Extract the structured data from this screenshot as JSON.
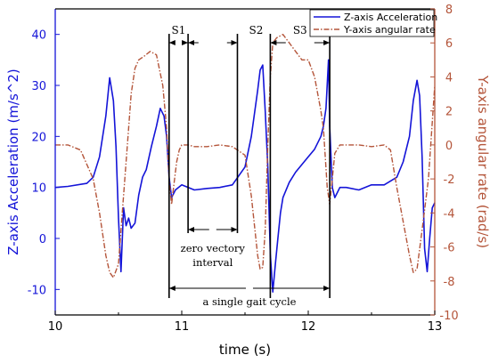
{
  "chart_data": {
    "type": "line",
    "title": "",
    "xlabel": "time (s)",
    "ylabel_left": "Z-axis Acceleration (m/s^2)",
    "ylabel_right": "Y-axis angular rate (rad/s)",
    "xlim": [
      10,
      13
    ],
    "ylim_left": [
      -15,
      45
    ],
    "ylim_right": [
      -10,
      8
    ],
    "x_ticks": [
      "10",
      "11",
      "12",
      "13"
    ],
    "y_ticks_left": [
      "-10",
      "0",
      "10",
      "20",
      "30",
      "40"
    ],
    "y_ticks_right": [
      "-10",
      "-8",
      "-6",
      "-4",
      "-2",
      "0",
      "2",
      "4",
      "6",
      "8"
    ],
    "grid": false,
    "legend_position": "top-right",
    "series": [
      {
        "name": "Z-axis Acceleration",
        "axis": "left",
        "color": "#1414d8",
        "style": "solid",
        "x": [
          10.0,
          10.1,
          10.25,
          10.3,
          10.35,
          10.4,
          10.43,
          10.46,
          10.48,
          10.5,
          10.52,
          10.54,
          10.56,
          10.58,
          10.6,
          10.63,
          10.66,
          10.69,
          10.72,
          10.76,
          10.8,
          10.83,
          10.86,
          10.88,
          10.9,
          10.92,
          10.95,
          11.0,
          11.1,
          11.2,
          11.3,
          11.4,
          11.5,
          11.55,
          11.6,
          11.62,
          11.64,
          11.66,
          11.68,
          11.7,
          11.72,
          11.74,
          11.76,
          11.78,
          11.8,
          11.85,
          11.9,
          11.95,
          12.0,
          12.05,
          12.1,
          12.12,
          12.14,
          12.16,
          12.17,
          12.19,
          12.21,
          12.25,
          12.3,
          12.4,
          12.5,
          12.6,
          12.7,
          12.75,
          12.8,
          12.83,
          12.86,
          12.88,
          12.9,
          12.92,
          12.94,
          12.96,
          12.98,
          13.0
        ],
        "y": [
          10,
          10.2,
          10.8,
          12,
          16,
          24,
          31.5,
          27,
          18,
          4,
          -6.5,
          6,
          2.5,
          4,
          2,
          3,
          8.5,
          12,
          13.5,
          18,
          22,
          25.5,
          24,
          20,
          12,
          8,
          9.5,
          10.5,
          9.5,
          9.8,
          10,
          10.5,
          14,
          20,
          29,
          33,
          34,
          25,
          14,
          -3,
          -10.5,
          -5,
          0,
          5,
          8,
          11,
          13,
          14.5,
          16,
          17.5,
          20,
          22,
          25.5,
          35,
          22,
          10,
          8,
          10,
          10,
          9.5,
          10.5,
          10.5,
          12,
          15,
          20,
          27,
          31,
          28,
          16,
          -2,
          -6.5,
          0,
          6,
          7
        ]
      },
      {
        "name": "Y-axis angular rate",
        "axis": "right",
        "color": "#b4553a",
        "style": "dash-dot",
        "x": [
          10.0,
          10.1,
          10.2,
          10.3,
          10.35,
          10.4,
          10.43,
          10.46,
          10.5,
          10.52,
          10.55,
          10.58,
          10.6,
          10.63,
          10.66,
          10.7,
          10.75,
          10.8,
          10.85,
          10.88,
          10.9,
          10.92,
          10.94,
          10.96,
          10.98,
          11.0,
          11.05,
          11.1,
          11.2,
          11.3,
          11.4,
          11.5,
          11.55,
          11.6,
          11.62,
          11.64,
          11.66,
          11.68,
          11.7,
          11.72,
          11.75,
          11.8,
          11.85,
          11.9,
          11.95,
          12.0,
          12.05,
          12.1,
          12.12,
          12.15,
          12.17,
          12.19,
          12.21,
          12.25,
          12.3,
          12.4,
          12.5,
          12.6,
          12.65,
          12.7,
          12.75,
          12.8,
          12.83,
          12.86,
          12.9,
          12.95,
          13.0
        ],
        "y": [
          0,
          0,
          -0.3,
          -2,
          -4,
          -6.5,
          -7.5,
          -7.8,
          -7,
          -5,
          -2,
          1,
          3,
          4.5,
          5,
          5.2,
          5.5,
          5.3,
          3.5,
          1,
          -2,
          -3.5,
          -2.2,
          -1,
          -0.3,
          0,
          0,
          -0.1,
          -0.1,
          0,
          -0.1,
          -0.6,
          -3,
          -6.5,
          -7.3,
          -7.2,
          -5,
          0,
          4,
          6,
          6.3,
          6.5,
          6,
          5.5,
          5,
          5,
          4,
          2,
          1,
          -2.5,
          -3.5,
          -2,
          -0.5,
          0,
          0,
          0,
          -0.1,
          0,
          -0.3,
          -2.5,
          -4.5,
          -6.5,
          -7.5,
          -7.3,
          -5,
          -2,
          3.5
        ]
      }
    ],
    "annotations": {
      "phase_labels": [
        "S1",
        "S2",
        "S3"
      ],
      "zero_velocity_text_line1": "zero vectory",
      "zero_velocity_text_line2": "interval",
      "gait_cycle_text": "a single gait cycle",
      "marker_times": [
        10.9,
        11.05,
        11.44,
        11.7,
        12.17
      ]
    }
  }
}
